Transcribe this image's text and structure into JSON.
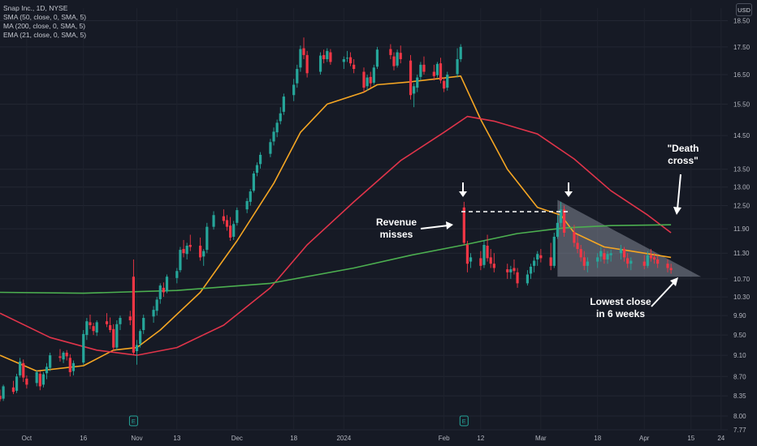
{
  "legend": {
    "symbol": "Snap Inc., 1D, NYSE",
    "sma50": "SMA (50, close, 0, SMA, 5)",
    "ma200": "MA (200, close, 0, SMA, 5)",
    "ema21": "EMA (21, close, 0, SMA, 5)"
  },
  "currency": "USD",
  "annotations": {
    "revenue_line1": "Revenue",
    "revenue_line2": "misses",
    "death_line1": "\"Death",
    "death_line2": "cross\"",
    "lowest_line1": "Lowest close",
    "lowest_line2": "in 6 weeks",
    "earnings_marker": "E"
  },
  "colors": {
    "background": "#161a25",
    "up": "#26a69a",
    "down": "#f23645",
    "ema21": "#f5a623",
    "sma50": "#e0344a",
    "ma200": "#4caf50",
    "axis_text": "#b2b5be",
    "annotation": "#ffffff"
  },
  "chart_data": {
    "type": "candlestick",
    "y_scale": "log",
    "ylim": [
      7.77,
      19.0
    ],
    "y_ticks": [
      "18.50",
      "17.50",
      "16.50",
      "15.50",
      "14.50",
      "13.50",
      "13.00",
      "12.50",
      "11.90",
      "11.30",
      "10.70",
      "10.30",
      "9.90",
      "9.50",
      "9.10",
      "8.70",
      "8.35",
      "8.00",
      "7.77"
    ],
    "x_ticks": [
      "Oct",
      "16",
      "Nov",
      "13",
      "Dec",
      "18",
      "2024",
      "Feb",
      "12",
      "Mar",
      "18",
      "Apr",
      "15",
      "24"
    ],
    "x_range": [
      "2023-09-21",
      "2024-04-26"
    ],
    "ohlc": [
      [
        "2023-09-21",
        8.35,
        8.46,
        8.25,
        8.29
      ],
      [
        "2023-09-22",
        8.3,
        8.55,
        8.26,
        8.52
      ],
      [
        "2023-09-25",
        8.5,
        8.62,
        8.38,
        8.42
      ],
      [
        "2023-09-26",
        8.44,
        8.75,
        8.4,
        8.7
      ],
      [
        "2023-09-27",
        8.72,
        9.05,
        8.68,
        8.98
      ],
      [
        "2023-09-28",
        8.95,
        9.02,
        8.6,
        8.68
      ],
      [
        "2023-09-29",
        8.66,
        8.72,
        8.48,
        8.55
      ],
      [
        "2023-10-02",
        8.58,
        8.82,
        8.52,
        8.78
      ],
      [
        "2023-10-03",
        8.75,
        8.8,
        8.45,
        8.52
      ],
      [
        "2023-10-04",
        8.55,
        8.78,
        8.5,
        8.74
      ],
      [
        "2023-10-05",
        8.76,
        8.95,
        8.65,
        8.88
      ],
      [
        "2023-10-06",
        8.86,
        9.15,
        8.8,
        9.1
      ],
      [
        "2023-10-09",
        9.08,
        9.22,
        8.98,
        9.05
      ],
      [
        "2023-10-10",
        9.02,
        9.18,
        8.95,
        9.15
      ],
      [
        "2023-10-11",
        9.15,
        9.2,
        9.0,
        9.08
      ],
      [
        "2023-10-12",
        9.05,
        9.12,
        8.7,
        8.78
      ],
      [
        "2023-10-13",
        8.8,
        9.0,
        8.72,
        8.95
      ],
      [
        "2023-10-16",
        8.96,
        9.6,
        8.92,
        9.52
      ],
      [
        "2023-10-17",
        9.5,
        9.85,
        9.4,
        9.78
      ],
      [
        "2023-10-18",
        9.76,
        9.92,
        9.62,
        9.7
      ],
      [
        "2023-10-19",
        9.68,
        9.75,
        9.5,
        9.58
      ],
      [
        "2023-10-20",
        9.55,
        9.8,
        9.48,
        9.76
      ],
      [
        "2023-10-23",
        9.78,
        9.95,
        9.66,
        9.72
      ],
      [
        "2023-10-24",
        9.7,
        9.86,
        9.55,
        9.6
      ],
      [
        "2023-10-25",
        9.62,
        9.72,
        9.18,
        9.25
      ],
      [
        "2023-10-26",
        9.25,
        9.8,
        9.2,
        9.72
      ],
      [
        "2023-10-27",
        9.72,
        9.9,
        9.6,
        9.85
      ],
      [
        "2023-10-30",
        9.88,
        10.0,
        9.7,
        9.8
      ],
      [
        "2023-10-31",
        10.75,
        11.15,
        9.1,
        9.15
      ],
      [
        "2023-11-01",
        9.18,
        9.4,
        8.92,
        9.3
      ],
      [
        "2023-11-02",
        9.32,
        9.62,
        9.25,
        9.58
      ],
      [
        "2023-11-03",
        9.6,
        9.92,
        9.52,
        9.85
      ],
      [
        "2023-11-06",
        9.88,
        10.1,
        9.75,
        10.02
      ],
      [
        "2023-11-07",
        10.0,
        10.3,
        9.9,
        10.24
      ],
      [
        "2023-11-08",
        10.25,
        10.6,
        10.15,
        10.55
      ],
      [
        "2023-11-09",
        10.5,
        10.62,
        10.3,
        10.4
      ],
      [
        "2023-11-10",
        10.42,
        10.8,
        10.38,
        10.75
      ],
      [
        "2023-11-13",
        10.72,
        10.95,
        10.6,
        10.88
      ],
      [
        "2023-11-14",
        10.9,
        11.45,
        10.85,
        11.38
      ],
      [
        "2023-11-15",
        11.4,
        11.62,
        11.2,
        11.3
      ],
      [
        "2023-11-16",
        11.28,
        11.55,
        11.15,
        11.48
      ],
      [
        "2023-11-17",
        11.5,
        11.75,
        11.35,
        11.45
      ],
      [
        "2023-11-20",
        11.48,
        11.68,
        11.12,
        11.2
      ],
      [
        "2023-11-21",
        11.22,
        11.4,
        11.0,
        11.35
      ],
      [
        "2023-11-22",
        11.38,
        12.05,
        11.3,
        11.95
      ],
      [
        "2023-11-24",
        11.95,
        12.35,
        11.88,
        12.25
      ],
      [
        "2023-11-27",
        12.22,
        12.4,
        12.02,
        12.1
      ],
      [
        "2023-11-28",
        12.12,
        12.25,
        11.85,
        11.95
      ],
      [
        "2023-11-29",
        11.98,
        12.2,
        11.6,
        11.68
      ],
      [
        "2023-11-30",
        11.7,
        12.1,
        11.62,
        12.02
      ],
      [
        "2023-12-01",
        12.05,
        12.45,
        11.98,
        12.38
      ],
      [
        "2023-12-04",
        12.4,
        12.7,
        12.3,
        12.62
      ],
      [
        "2023-12-05",
        12.6,
        12.95,
        12.5,
        12.88
      ],
      [
        "2023-12-06",
        12.9,
        13.45,
        12.85,
        13.38
      ],
      [
        "2023-12-07",
        13.4,
        13.7,
        13.3,
        13.62
      ],
      [
        "2023-12-08",
        13.65,
        14.0,
        13.52,
        13.92
      ],
      [
        "2023-12-11",
        13.95,
        14.4,
        13.85,
        14.3
      ],
      [
        "2023-12-12",
        14.32,
        14.75,
        14.2,
        14.62
      ],
      [
        "2023-12-13",
        14.6,
        15.0,
        14.45,
        14.9
      ],
      [
        "2023-12-14",
        14.95,
        15.4,
        14.85,
        15.2
      ],
      [
        "2023-12-15",
        15.25,
        15.85,
        15.15,
        15.75
      ],
      [
        "2023-12-18",
        15.8,
        16.35,
        15.6,
        16.15
      ],
      [
        "2023-12-19",
        16.2,
        16.85,
        16.05,
        16.7
      ],
      [
        "2023-12-20",
        16.75,
        17.55,
        16.6,
        17.42
      ],
      [
        "2023-12-21",
        17.45,
        17.85,
        17.05,
        17.2
      ],
      [
        "2023-12-22",
        17.2,
        17.35,
        16.4,
        16.55
      ],
      [
        "2023-12-26",
        16.6,
        17.3,
        16.5,
        17.18
      ],
      [
        "2023-12-27",
        17.2,
        17.4,
        16.9,
        17.05
      ],
      [
        "2023-12-28",
        17.05,
        17.45,
        16.95,
        17.35
      ],
      [
        "2023-12-29",
        17.3,
        17.42,
        16.85,
        16.95
      ],
      [
        "2024-01-02",
        16.95,
        17.15,
        16.7,
        17.05
      ],
      [
        "2024-01-03",
        17.08,
        17.35,
        16.95,
        17.1
      ],
      [
        "2024-01-04",
        17.12,
        17.3,
        16.8,
        16.9
      ],
      [
        "2024-01-05",
        16.85,
        17.05,
        16.55,
        16.7
      ],
      [
        "2024-01-08",
        16.6,
        16.75,
        15.9,
        16.05
      ],
      [
        "2024-01-09",
        16.1,
        16.5,
        15.95,
        16.4
      ],
      [
        "2024-01-10",
        16.42,
        16.6,
        16.05,
        16.2
      ],
      [
        "2024-01-11",
        16.22,
        16.85,
        16.15,
        16.75
      ],
      [
        "2024-01-12",
        16.78,
        17.5,
        16.7,
        17.4
      ],
      [
        "2024-01-16",
        17.42,
        17.6,
        17.05,
        17.2
      ],
      [
        "2024-01-17",
        17.15,
        17.3,
        16.65,
        16.8
      ],
      [
        "2024-01-18",
        16.82,
        17.4,
        16.75,
        17.3
      ],
      [
        "2024-01-19",
        17.28,
        17.55,
        16.9,
        17.05
      ],
      [
        "2024-01-22",
        17.0,
        17.2,
        15.65,
        15.8
      ],
      [
        "2024-01-23",
        15.85,
        16.2,
        15.4,
        16.1
      ],
      [
        "2024-01-24",
        16.05,
        16.5,
        15.9,
        16.4
      ],
      [
        "2024-01-25",
        16.42,
        16.95,
        16.3,
        16.85
      ],
      [
        "2024-01-26",
        16.85,
        17.15,
        16.5,
        16.6
      ],
      [
        "2024-01-29",
        16.6,
        16.85,
        16.3,
        16.45
      ],
      [
        "2024-01-30",
        16.48,
        16.95,
        16.4,
        16.88
      ],
      [
        "2024-01-31",
        16.9,
        17.1,
        16.2,
        16.3
      ],
      [
        "2024-02-01",
        16.28,
        16.4,
        15.9,
        16.02
      ],
      [
        "2024-02-02",
        16.05,
        16.6,
        15.95,
        16.5
      ],
      [
        "2024-02-05",
        16.52,
        17.45,
        16.4,
        17.05
      ],
      [
        "2024-02-06",
        17.05,
        17.6,
        16.95,
        17.5
      ],
      [
        "2024-02-07",
        12.45,
        12.6,
        11.5,
        11.55
      ],
      [
        "2024-02-08",
        11.5,
        11.6,
        10.85,
        11.05
      ],
      [
        "2024-02-09",
        11.1,
        11.3,
        10.95,
        11.2
      ],
      [
        "2024-02-12",
        11.18,
        11.35,
        10.9,
        11.0
      ],
      [
        "2024-02-13",
        11.02,
        11.62,
        10.95,
        11.5
      ],
      [
        "2024-02-14",
        11.48,
        11.75,
        11.1,
        11.18
      ],
      [
        "2024-02-15",
        11.2,
        11.4,
        10.95,
        11.05
      ],
      [
        "2024-02-16",
        11.05,
        11.3,
        10.85,
        10.95
      ],
      [
        "2024-02-20",
        10.92,
        11.05,
        10.7,
        10.85
      ],
      [
        "2024-02-21",
        10.85,
        11.0,
        10.7,
        10.92
      ],
      [
        "2024-02-22",
        10.95,
        11.15,
        10.8,
        10.88
      ],
      [
        "2024-02-23",
        10.85,
        10.95,
        10.5,
        10.6
      ],
      [
        "2024-02-26",
        10.6,
        10.9,
        10.55,
        10.8
      ],
      [
        "2024-02-27",
        10.82,
        11.05,
        10.7,
        10.98
      ],
      [
        "2024-02-28",
        11.0,
        11.2,
        10.85,
        11.12
      ],
      [
        "2024-02-29",
        11.15,
        11.35,
        11.0,
        11.28
      ],
      [
        "2024-03-01",
        11.25,
        11.4,
        11.08,
        11.18
      ],
      [
        "2024-03-04",
        11.2,
        11.55,
        10.9,
        11.0
      ],
      [
        "2024-03-05",
        11.0,
        11.8,
        10.95,
        11.7
      ],
      [
        "2024-03-06",
        11.7,
        12.25,
        11.65,
        12.05
      ],
      [
        "2024-03-07",
        12.05,
        12.6,
        11.95,
        12.4
      ],
      [
        "2024-03-08",
        12.4,
        12.5,
        11.7,
        11.8
      ],
      [
        "2024-03-11",
        11.82,
        12.0,
        11.45,
        11.55
      ],
      [
        "2024-03-12",
        11.55,
        11.75,
        11.3,
        11.4
      ],
      [
        "2024-03-13",
        11.4,
        11.5,
        11.1,
        11.2
      ],
      [
        "2024-03-14",
        11.2,
        11.35,
        10.9,
        11.0
      ],
      [
        "2024-03-15",
        11.0,
        11.2,
        10.85,
        11.1
      ],
      [
        "2024-03-18",
        11.1,
        11.3,
        10.95,
        11.2
      ],
      [
        "2024-03-19",
        11.22,
        11.45,
        11.1,
        11.35
      ],
      [
        "2024-03-20",
        11.3,
        11.4,
        11.05,
        11.15
      ],
      [
        "2024-03-21",
        11.15,
        11.35,
        11.05,
        11.28
      ],
      [
        "2024-03-22",
        11.25,
        11.38,
        11.1,
        11.3
      ],
      [
        "2024-03-25",
        11.3,
        11.5,
        11.15,
        11.4
      ],
      [
        "2024-03-26",
        11.4,
        11.45,
        11.1,
        11.2
      ],
      [
        "2024-03-27",
        11.18,
        11.3,
        10.95,
        11.05
      ],
      [
        "2024-03-28",
        11.05,
        11.2,
        10.9,
        11.12
      ],
      [
        "2024-04-01",
        11.1,
        11.25,
        10.92,
        11.0
      ],
      [
        "2024-04-02",
        11.0,
        11.35,
        10.95,
        11.25
      ],
      [
        "2024-04-03",
        11.25,
        11.4,
        11.1,
        11.18
      ],
      [
        "2024-04-04",
        11.2,
        11.3,
        11.05,
        11.15
      ],
      [
        "2024-04-05",
        11.15,
        11.25,
        10.95,
        11.05
      ],
      [
        "2024-04-08",
        11.05,
        11.15,
        10.85,
        10.95
      ],
      [
        "2024-04-09",
        10.95,
        11.05,
        10.82,
        10.9
      ]
    ],
    "series": [
      {
        "name": "EMA (21, close, 0, SMA, 5)",
        "points": [
          [
            "2023-09-21",
            9.1
          ],
          [
            "2023-10-02",
            8.8
          ],
          [
            "2023-10-16",
            8.9
          ],
          [
            "2023-10-25",
            9.2
          ],
          [
            "2023-11-01",
            9.25
          ],
          [
            "2023-11-08",
            9.6
          ],
          [
            "2023-11-20",
            10.4
          ],
          [
            "2023-12-01",
            11.6
          ],
          [
            "2023-12-12",
            13.1
          ],
          [
            "2023-12-20",
            14.6
          ],
          [
            "2023-12-28",
            15.5
          ],
          [
            "2024-01-08",
            15.9
          ],
          [
            "2024-01-12",
            16.15
          ],
          [
            "2024-01-22",
            16.25
          ],
          [
            "2024-02-06",
            16.45
          ],
          [
            "2024-02-12",
            15.0
          ],
          [
            "2024-02-20",
            13.5
          ],
          [
            "2024-02-29",
            12.45
          ],
          [
            "2024-03-07",
            12.25
          ],
          [
            "2024-03-11",
            11.8
          ],
          [
            "2024-03-20",
            11.45
          ],
          [
            "2024-03-28",
            11.35
          ],
          [
            "2024-04-09",
            11.2
          ]
        ]
      },
      {
        "name": "SMA (50, close, 0, SMA, 5)",
        "points": [
          [
            "2023-09-21",
            9.95
          ],
          [
            "2023-10-06",
            9.45
          ],
          [
            "2023-10-20",
            9.2
          ],
          [
            "2023-11-01",
            9.1
          ],
          [
            "2023-11-13",
            9.25
          ],
          [
            "2023-11-27",
            9.7
          ],
          [
            "2023-12-11",
            10.5
          ],
          [
            "2023-12-22",
            11.5
          ],
          [
            "2024-01-05",
            12.6
          ],
          [
            "2024-01-19",
            13.75
          ],
          [
            "2024-02-01",
            14.6
          ],
          [
            "2024-02-08",
            15.1
          ],
          [
            "2024-02-16",
            14.95
          ],
          [
            "2024-02-29",
            14.55
          ],
          [
            "2024-03-11",
            13.8
          ],
          [
            "2024-03-22",
            12.9
          ],
          [
            "2024-04-02",
            12.25
          ],
          [
            "2024-04-09",
            11.8
          ]
        ]
      },
      {
        "name": "MA (200, close, 0, SMA, 5)",
        "points": [
          [
            "2023-09-21",
            10.4
          ],
          [
            "2023-10-16",
            10.38
          ],
          [
            "2023-11-13",
            10.44
          ],
          [
            "2023-12-11",
            10.6
          ],
          [
            "2024-01-05",
            10.95
          ],
          [
            "2024-01-22",
            11.25
          ],
          [
            "2024-02-07",
            11.5
          ],
          [
            "2024-02-23",
            11.78
          ],
          [
            "2024-03-08",
            11.92
          ],
          [
            "2024-03-22",
            11.98
          ],
          [
            "2024-04-09",
            12.0
          ]
        ]
      }
    ],
    "earnings_dates": [
      "2023-10-31",
      "2024-02-07"
    ]
  }
}
